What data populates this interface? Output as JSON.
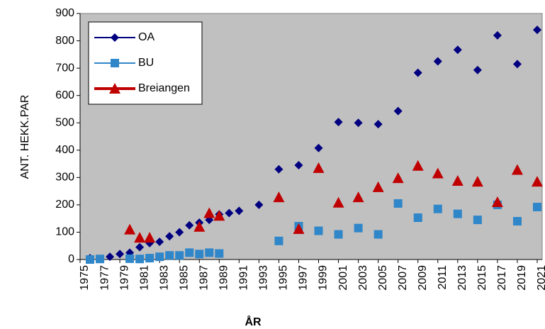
{
  "chart_data": {
    "type": "scatter",
    "xlabel": "ÅR",
    "ylabel": "ANT. HEKK.PAR",
    "xlim": [
      1975,
      2021.5
    ],
    "xticks": [
      1975,
      1977,
      1979,
      1981,
      1983,
      1985,
      1987,
      1989,
      1991,
      1993,
      1995,
      1997,
      1999,
      2001,
      2003,
      2005,
      2007,
      2009,
      2011,
      2013,
      2015,
      2017,
      2019,
      2021
    ],
    "ylim": [
      0,
      900
    ],
    "yticks": [
      0,
      100,
      200,
      300,
      400,
      500,
      600,
      700,
      800,
      900
    ],
    "legend": "upper left",
    "background": "#c0c0c0",
    "series": [
      {
        "name": "OA",
        "color": "#000080",
        "marker": "diamond",
        "x": [
          1976,
          1978,
          1979,
          1980,
          1981,
          1982,
          1983,
          1984,
          1985,
          1986,
          1987,
          1988,
          1989,
          1990,
          1991,
          1993,
          1995,
          1997,
          1999,
          2001,
          2003,
          2005,
          2007,
          2009,
          2011,
          2013,
          2015,
          2017,
          2019,
          2021
        ],
        "values": [
          5,
          10,
          20,
          25,
          45,
          60,
          65,
          85,
          100,
          125,
          135,
          145,
          165,
          170,
          178,
          200,
          330,
          345,
          408,
          503,
          500,
          495,
          543,
          683,
          725,
          767,
          693,
          820,
          715,
          840
        ]
      },
      {
        "name": "BU",
        "color": "#2f86c9",
        "marker": "square",
        "x": [
          1976,
          1977,
          1980,
          1981,
          1982,
          1983,
          1984,
          1985,
          1986,
          1987,
          1988,
          1989,
          1995,
          1997,
          1999,
          2001,
          2003,
          2005,
          2007,
          2009,
          2011,
          2013,
          2015,
          2017,
          2019,
          2021
        ],
        "values": [
          0,
          2,
          3,
          2,
          5,
          10,
          15,
          15,
          25,
          20,
          25,
          22,
          68,
          122,
          105,
          92,
          115,
          92,
          205,
          153,
          185,
          167,
          145,
          200,
          140,
          192
        ]
      },
      {
        "name": "Breiangen",
        "color": "#c00000",
        "marker": "triangle",
        "x": [
          1980,
          1981,
          1982,
          1987,
          1988,
          1989,
          1995,
          1997,
          1999,
          2001,
          2003,
          2005,
          2007,
          2009,
          2011,
          2013,
          2015,
          2017,
          2019,
          2021
        ],
        "values": [
          110,
          80,
          80,
          120,
          170,
          160,
          228,
          112,
          335,
          208,
          228,
          265,
          298,
          343,
          315,
          288,
          285,
          210,
          328,
          285
        ]
      }
    ]
  }
}
